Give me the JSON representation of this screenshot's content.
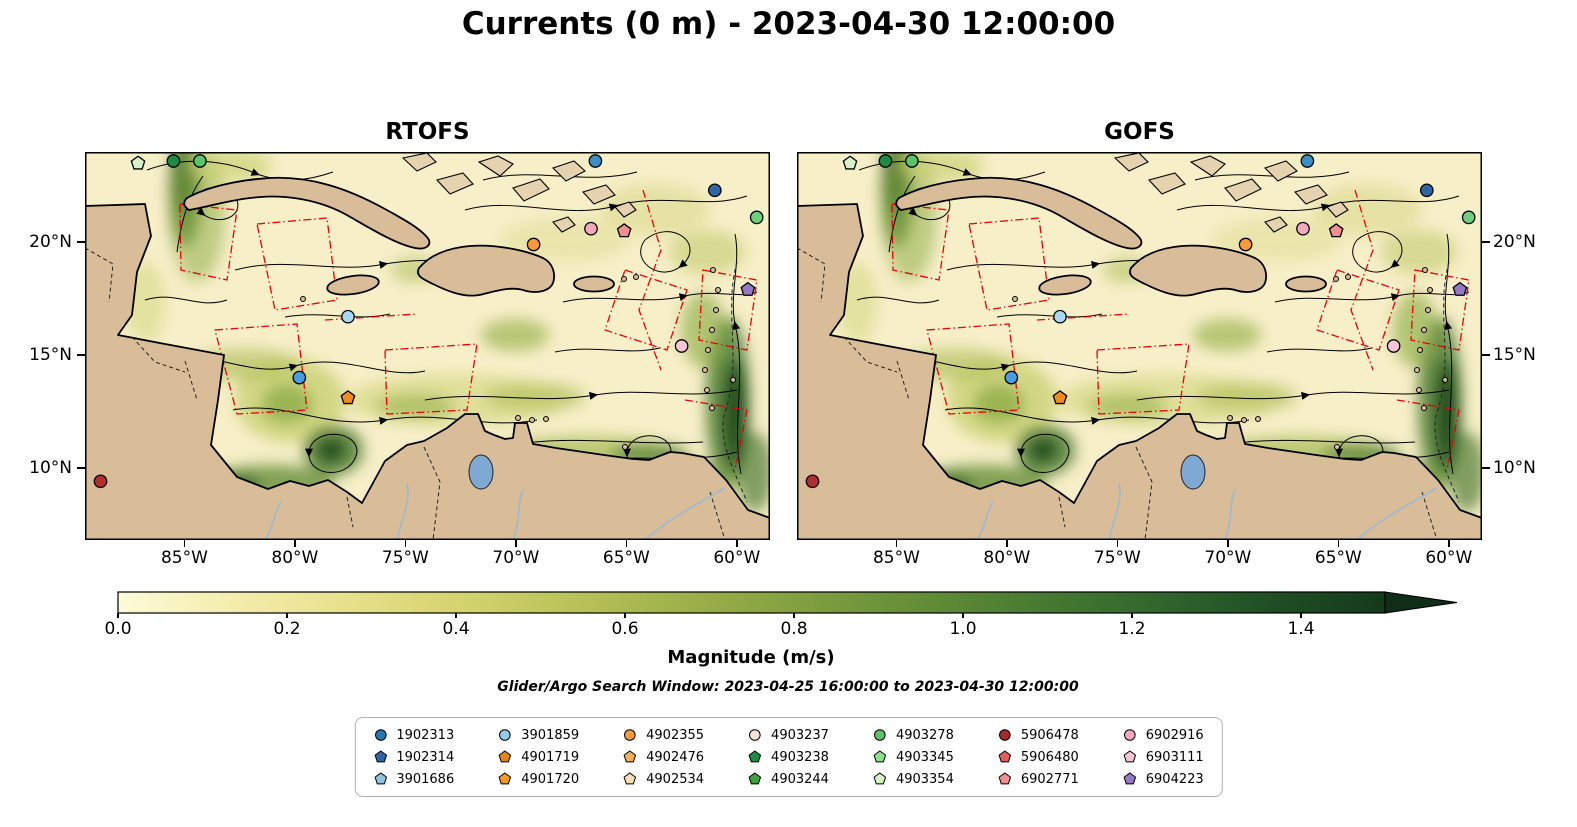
{
  "figure": {
    "title": "Currents (0 m) - 2023-04-30 12:00:00",
    "search_window_note": "Glider/Argo Search Window: 2023-04-25 16:00:00 to 2023-04-30 12:00:00"
  },
  "panels": [
    {
      "key": "rtofs",
      "title": "RTOFS"
    },
    {
      "key": "gofs",
      "title": "GOFS"
    }
  ],
  "axes": {
    "x_ticks": [
      {
        "label": "85°W",
        "lon": -85
      },
      {
        "label": "80°W",
        "lon": -80
      },
      {
        "label": "75°W",
        "lon": -75
      },
      {
        "label": "70°W",
        "lon": -70
      },
      {
        "label": "65°W",
        "lon": -65
      },
      {
        "label": "60°W",
        "lon": -60
      }
    ],
    "y_ticks": [
      {
        "label": "20°N",
        "lat": 20
      },
      {
        "label": "15°N",
        "lat": 15
      },
      {
        "label": "10°N",
        "lat": 10
      }
    ]
  },
  "colorbar": {
    "label": "Magnitude (m/s)",
    "ticks": [
      "0.0",
      "0.2",
      "0.4",
      "0.6",
      "0.8",
      "1.0",
      "1.2",
      "1.4"
    ],
    "tick_values": [
      0,
      0.2,
      0.4,
      0.6,
      0.8,
      1.0,
      1.2,
      1.4
    ],
    "vmin": 0.0,
    "vmax": 1.5,
    "extend": "max"
  },
  "legend": {
    "entries": [
      {
        "id": "1902313",
        "color": "#2478b4",
        "shape": "circle"
      },
      {
        "id": "1902314",
        "color": "#2e66a5",
        "shape": "pentagon"
      },
      {
        "id": "3901686",
        "color": "#8fc3e0",
        "shape": "pentagon"
      },
      {
        "id": "3901859",
        "color": "#94cbe9",
        "shape": "circle"
      },
      {
        "id": "4901719",
        "color": "#e5861a",
        "shape": "pentagon"
      },
      {
        "id": "4901720",
        "color": "#f59b23",
        "shape": "pentagon"
      },
      {
        "id": "4902355",
        "color": "#f79b3d",
        "shape": "circle"
      },
      {
        "id": "4902476",
        "color": "#f9ae59",
        "shape": "pentagon"
      },
      {
        "id": "4902534",
        "color": "#f7dfb4",
        "shape": "pentagon"
      },
      {
        "id": "4903237",
        "color": "#f9e5d2",
        "shape": "circle"
      },
      {
        "id": "4903238",
        "color": "#1e8b45",
        "shape": "pentagon"
      },
      {
        "id": "4903244",
        "color": "#3fa33c",
        "shape": "pentagon"
      },
      {
        "id": "4903278",
        "color": "#5cc368",
        "shape": "circle"
      },
      {
        "id": "4903345",
        "color": "#8fe08f",
        "shape": "pentagon"
      },
      {
        "id": "4903354",
        "color": "#d4f2c4",
        "shape": "pentagon"
      },
      {
        "id": "5906478",
        "color": "#a52a2a",
        "shape": "circle"
      },
      {
        "id": "5906480",
        "color": "#e06060",
        "shape": "pentagon"
      },
      {
        "id": "6902771",
        "color": "#ef8f8f",
        "shape": "pentagon"
      },
      {
        "id": "6902916",
        "color": "#f2a8bd",
        "shape": "circle"
      },
      {
        "id": "6903111",
        "color": "#f7c6d4",
        "shape": "pentagon"
      },
      {
        "id": "6904223",
        "color": "#9678c8",
        "shape": "pentagon"
      }
    ]
  },
  "chart_data": {
    "type": "heatmap",
    "subtype": "two-panel geographic ocean-current speed map with streamlines, red transect lines and drifting platform positions",
    "title": "Currents (0 m) - 2023-04-30 12:00:00",
    "panels": [
      "RTOFS",
      "GOFS"
    ],
    "region": "Caribbean Sea / Tropical Atlantic",
    "lon_range": [
      -89.5,
      -58.5
    ],
    "lat_range": [
      6.8,
      24.0
    ],
    "x_tick_lons": [
      -85,
      -80,
      -75,
      -70,
      -65,
      -60
    ],
    "y_tick_lats": [
      20,
      15,
      10
    ],
    "color_scale": {
      "label": "Magnitude (m/s)",
      "vmin": 0.0,
      "vmax": 1.5,
      "ticks": [
        0,
        0.2,
        0.4,
        0.6,
        0.8,
        1.0,
        1.2,
        1.4
      ],
      "extend": "max",
      "colormap": "sequential cream-yellow to dark-green (speed-like)"
    },
    "search_window": "2023-04-25 16:00:00 to 2023-04-30 12:00:00",
    "platform_ids": [
      "1902313",
      "1902314",
      "3901686",
      "3901859",
      "4901719",
      "4901720",
      "4902355",
      "4902476",
      "4902534",
      "4903237",
      "4903238",
      "4903244",
      "4903278",
      "4903345",
      "4903354",
      "5906478",
      "5906480",
      "6902771",
      "6902916",
      "6903111",
      "6904223"
    ],
    "float_markers_approx": [
      {
        "lon": -87.1,
        "lat": 23.5,
        "color": "#d6f2c6",
        "shape": "pentagon"
      },
      {
        "lon": -85.5,
        "lat": 23.6,
        "color": "#1e8b45",
        "shape": "circle"
      },
      {
        "lon": -84.3,
        "lat": 23.6,
        "color": "#5cc368",
        "shape": "circle"
      },
      {
        "lon": -66.4,
        "lat": 23.6,
        "color": "#3b8ec4",
        "shape": "circle"
      },
      {
        "lon": -61.0,
        "lat": 22.3,
        "color": "#2e66a5",
        "shape": "circle"
      },
      {
        "lon": -59.1,
        "lat": 21.1,
        "color": "#6fcf7a",
        "shape": "circle"
      },
      {
        "lon": -66.6,
        "lat": 20.6,
        "color": "#f2a8bd",
        "shape": "circle"
      },
      {
        "lon": -65.1,
        "lat": 20.5,
        "color": "#ef8f8f",
        "shape": "pentagon"
      },
      {
        "lon": -69.2,
        "lat": 19.9,
        "color": "#f79b3d",
        "shape": "circle"
      },
      {
        "lon": -59.5,
        "lat": 17.9,
        "color": "#9678c8",
        "shape": "pentagon"
      },
      {
        "lon": -77.6,
        "lat": 16.7,
        "color": "#a8d8f0",
        "shape": "circle"
      },
      {
        "lon": -62.5,
        "lat": 15.4,
        "color": "#f7c6d4",
        "shape": "circle"
      },
      {
        "lon": -79.8,
        "lat": 14.0,
        "color": "#4a9de0",
        "shape": "circle"
      },
      {
        "lon": -77.6,
        "lat": 13.1,
        "color": "#f08c1e",
        "shape": "pentagon"
      },
      {
        "lon": -88.8,
        "lat": 9.4,
        "color": "#b03030",
        "shape": "circle"
      }
    ]
  }
}
